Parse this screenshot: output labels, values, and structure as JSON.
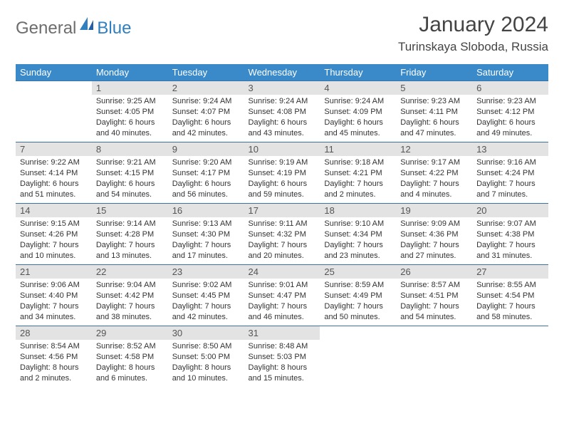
{
  "brand": {
    "part1": "General",
    "part2": "Blue"
  },
  "title": "January 2024",
  "location": "Turinskaya Sloboda, Russia",
  "weekdays": [
    "Sunday",
    "Monday",
    "Tuesday",
    "Wednesday",
    "Thursday",
    "Friday",
    "Saturday"
  ],
  "colors": {
    "header_bg": "#3a8ac9",
    "header_text": "#ffffff",
    "daynum_bg": "#e3e3e3",
    "border": "#3a73a6",
    "logo_gray": "#6d6d6d",
    "logo_blue": "#2f7fc1"
  },
  "first_weekday_offset": 1,
  "days": [
    {
      "n": 1,
      "sunrise": "9:25 AM",
      "sunset": "4:05 PM",
      "daylight": "6 hours and 40 minutes."
    },
    {
      "n": 2,
      "sunrise": "9:24 AM",
      "sunset": "4:07 PM",
      "daylight": "6 hours and 42 minutes."
    },
    {
      "n": 3,
      "sunrise": "9:24 AM",
      "sunset": "4:08 PM",
      "daylight": "6 hours and 43 minutes."
    },
    {
      "n": 4,
      "sunrise": "9:24 AM",
      "sunset": "4:09 PM",
      "daylight": "6 hours and 45 minutes."
    },
    {
      "n": 5,
      "sunrise": "9:23 AM",
      "sunset": "4:11 PM",
      "daylight": "6 hours and 47 minutes."
    },
    {
      "n": 6,
      "sunrise": "9:23 AM",
      "sunset": "4:12 PM",
      "daylight": "6 hours and 49 minutes."
    },
    {
      "n": 7,
      "sunrise": "9:22 AM",
      "sunset": "4:14 PM",
      "daylight": "6 hours and 51 minutes."
    },
    {
      "n": 8,
      "sunrise": "9:21 AM",
      "sunset": "4:15 PM",
      "daylight": "6 hours and 54 minutes."
    },
    {
      "n": 9,
      "sunrise": "9:20 AM",
      "sunset": "4:17 PM",
      "daylight": "6 hours and 56 minutes."
    },
    {
      "n": 10,
      "sunrise": "9:19 AM",
      "sunset": "4:19 PM",
      "daylight": "6 hours and 59 minutes."
    },
    {
      "n": 11,
      "sunrise": "9:18 AM",
      "sunset": "4:21 PM",
      "daylight": "7 hours and 2 minutes."
    },
    {
      "n": 12,
      "sunrise": "9:17 AM",
      "sunset": "4:22 PM",
      "daylight": "7 hours and 4 minutes."
    },
    {
      "n": 13,
      "sunrise": "9:16 AM",
      "sunset": "4:24 PM",
      "daylight": "7 hours and 7 minutes."
    },
    {
      "n": 14,
      "sunrise": "9:15 AM",
      "sunset": "4:26 PM",
      "daylight": "7 hours and 10 minutes."
    },
    {
      "n": 15,
      "sunrise": "9:14 AM",
      "sunset": "4:28 PM",
      "daylight": "7 hours and 13 minutes."
    },
    {
      "n": 16,
      "sunrise": "9:13 AM",
      "sunset": "4:30 PM",
      "daylight": "7 hours and 17 minutes."
    },
    {
      "n": 17,
      "sunrise": "9:11 AM",
      "sunset": "4:32 PM",
      "daylight": "7 hours and 20 minutes."
    },
    {
      "n": 18,
      "sunrise": "9:10 AM",
      "sunset": "4:34 PM",
      "daylight": "7 hours and 23 minutes."
    },
    {
      "n": 19,
      "sunrise": "9:09 AM",
      "sunset": "4:36 PM",
      "daylight": "7 hours and 27 minutes."
    },
    {
      "n": 20,
      "sunrise": "9:07 AM",
      "sunset": "4:38 PM",
      "daylight": "7 hours and 31 minutes."
    },
    {
      "n": 21,
      "sunrise": "9:06 AM",
      "sunset": "4:40 PM",
      "daylight": "7 hours and 34 minutes."
    },
    {
      "n": 22,
      "sunrise": "9:04 AM",
      "sunset": "4:42 PM",
      "daylight": "7 hours and 38 minutes."
    },
    {
      "n": 23,
      "sunrise": "9:02 AM",
      "sunset": "4:45 PM",
      "daylight": "7 hours and 42 minutes."
    },
    {
      "n": 24,
      "sunrise": "9:01 AM",
      "sunset": "4:47 PM",
      "daylight": "7 hours and 46 minutes."
    },
    {
      "n": 25,
      "sunrise": "8:59 AM",
      "sunset": "4:49 PM",
      "daylight": "7 hours and 50 minutes."
    },
    {
      "n": 26,
      "sunrise": "8:57 AM",
      "sunset": "4:51 PM",
      "daylight": "7 hours and 54 minutes."
    },
    {
      "n": 27,
      "sunrise": "8:55 AM",
      "sunset": "4:54 PM",
      "daylight": "7 hours and 58 minutes."
    },
    {
      "n": 28,
      "sunrise": "8:54 AM",
      "sunset": "4:56 PM",
      "daylight": "8 hours and 2 minutes."
    },
    {
      "n": 29,
      "sunrise": "8:52 AM",
      "sunset": "4:58 PM",
      "daylight": "8 hours and 6 minutes."
    },
    {
      "n": 30,
      "sunrise": "8:50 AM",
      "sunset": "5:00 PM",
      "daylight": "8 hours and 10 minutes."
    },
    {
      "n": 31,
      "sunrise": "8:48 AM",
      "sunset": "5:03 PM",
      "daylight": "8 hours and 15 minutes."
    }
  ],
  "labels": {
    "sunrise": "Sunrise:",
    "sunset": "Sunset:",
    "daylight": "Daylight:"
  }
}
